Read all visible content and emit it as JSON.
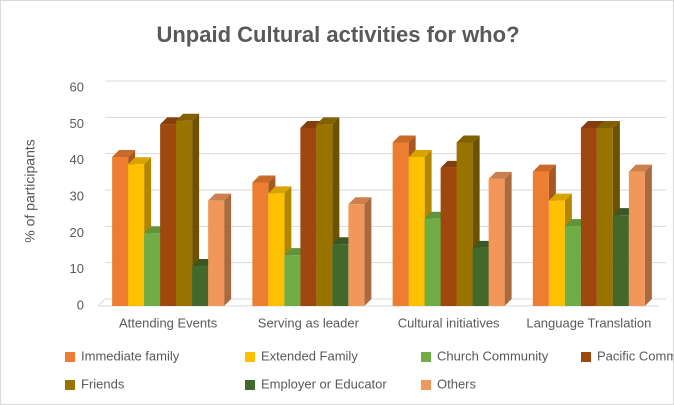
{
  "chart_data": {
    "type": "bar3d",
    "title": "Unpaid Cultural activities for who?",
    "y_label": "% of participants",
    "categories": [
      "Attending Events",
      "Serving as leader",
      "Cultural initiatives",
      "Language Translation"
    ],
    "series": [
      {
        "name": "Immediate family",
        "color": "#ed7d31",
        "values": [
          41,
          34,
          45,
          37
        ]
      },
      {
        "name": "Extended Family",
        "color": "#ffc000",
        "values": [
          39,
          31,
          41,
          29
        ]
      },
      {
        "name": "Church Community",
        "color": "#70ad47",
        "values": [
          20,
          14,
          24,
          22
        ]
      },
      {
        "name": "Pacific Community",
        "color": "#9e480e",
        "values": [
          50,
          49,
          38,
          49
        ]
      },
      {
        "name": "Friends",
        "color": "#997300",
        "values": [
          51,
          50,
          45,
          49
        ]
      },
      {
        "name": "Employer or Educator",
        "color": "#43682b",
        "values": [
          11,
          17,
          16,
          25
        ]
      },
      {
        "name": "Others",
        "color": "#f1975a",
        "values": [
          29,
          28,
          35,
          37
        ]
      }
    ],
    "ylim": [
      0,
      60
    ],
    "yticks": [
      0,
      10,
      20,
      30,
      40,
      50,
      60
    ],
    "grid": true
  }
}
